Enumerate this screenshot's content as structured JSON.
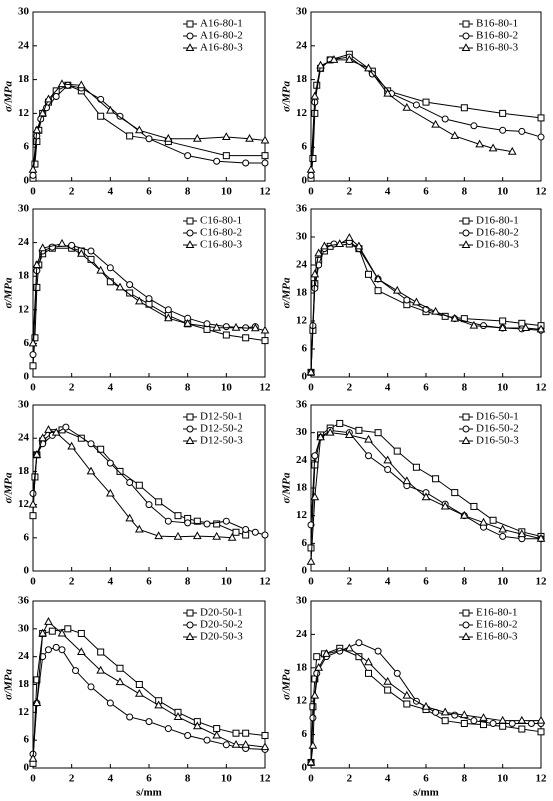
{
  "chart_data": [
    {
      "type": "line",
      "y_label": "σ/MPa",
      "xlim": [
        0,
        12
      ],
      "xticks": [
        0,
        2,
        4,
        6,
        8,
        10,
        12
      ],
      "ylim": [
        0,
        30
      ],
      "yticks": [
        0,
        6,
        12,
        18,
        24,
        30
      ],
      "legend": "upper right",
      "color": "#000000",
      "series": [
        {
          "name": "A16-80-1",
          "marker": "square",
          "x": [
            0,
            0.1,
            0.2,
            0.3,
            0.5,
            0.8,
            1.2,
            1.8,
            2.5,
            3.5,
            5,
            7,
            10,
            12
          ],
          "values": [
            0.5,
            3,
            7,
            9,
            12,
            14,
            16,
            17,
            16,
            11.5,
            8,
            7,
            4.5,
            4.5
          ]
        },
        {
          "name": "A16-80-2",
          "marker": "circle",
          "x": [
            0,
            0.2,
            0.4,
            0.7,
            1.2,
            1.8,
            2.5,
            3.5,
            4.5,
            6,
            8,
            9.5,
            11,
            12
          ],
          "values": [
            1,
            8,
            11,
            13,
            15,
            17,
            16.5,
            14.5,
            11.5,
            7.5,
            4.5,
            3.5,
            3.2,
            3.2
          ]
        },
        {
          "name": "A16-80-3",
          "marker": "triangle",
          "x": [
            0,
            0.2,
            0.5,
            0.8,
            1.5,
            2.5,
            4,
            5.5,
            7,
            8.5,
            10,
            11.2,
            12
          ],
          "values": [
            2,
            9,
            12,
            14.5,
            17.2,
            17,
            12.5,
            9,
            7.5,
            7.5,
            7.8,
            7.5,
            7.2
          ]
        }
      ]
    },
    {
      "type": "line",
      "y_label": "σ/MPa",
      "xlim": [
        0,
        12
      ],
      "xticks": [
        0,
        2,
        4,
        6,
        8,
        10,
        12
      ],
      "ylim": [
        0,
        30
      ],
      "yticks": [
        0,
        6,
        12,
        18,
        24,
        30
      ],
      "legend": "upper right",
      "color": "#000000",
      "series": [
        {
          "name": "B16-80-1",
          "marker": "square",
          "x": [
            0,
            0.1,
            0.2,
            0.3,
            0.5,
            1,
            2,
            3.2,
            4,
            6,
            8,
            10,
            12
          ],
          "values": [
            0.5,
            4,
            12,
            17,
            20,
            21.5,
            22.5,
            19.5,
            16,
            14,
            13,
            12,
            11.2
          ]
        },
        {
          "name": "B16-80-2",
          "marker": "circle",
          "x": [
            0,
            0.2,
            0.5,
            1,
            2,
            3.2,
            4.2,
            5.5,
            7,
            8.5,
            10,
            11,
            12
          ],
          "values": [
            1,
            14,
            20,
            21.5,
            22,
            19,
            15.5,
            13.5,
            11,
            9.8,
            9,
            8.8,
            7.8
          ]
        },
        {
          "name": "B16-80-3",
          "marker": "triangle",
          "x": [
            0,
            0.2,
            0.5,
            1.2,
            2,
            3,
            4,
            5,
            6.5,
            7.5,
            8.8,
            9.5,
            10.5
          ],
          "values": [
            2,
            15,
            20.5,
            21.5,
            21.5,
            20,
            15.5,
            13,
            10,
            8,
            6.5,
            5.8,
            5.2
          ]
        }
      ]
    },
    {
      "type": "line",
      "y_label": "σ/MPa",
      "xlim": [
        0,
        12
      ],
      "xticks": [
        0,
        2,
        4,
        6,
        8,
        10,
        12
      ],
      "ylim": [
        0,
        30
      ],
      "yticks": [
        0,
        6,
        12,
        18,
        24,
        30
      ],
      "legend": "upper right",
      "color": "#000000",
      "series": [
        {
          "name": "C16-80-1",
          "marker": "square",
          "x": [
            0,
            0.1,
            0.2,
            0.3,
            0.5,
            1,
            2,
            2.5,
            3,
            4,
            5,
            6,
            7,
            8,
            9,
            10,
            11,
            12
          ],
          "values": [
            2,
            7,
            16,
            20,
            22,
            23,
            23,
            22.5,
            21,
            17,
            15,
            13,
            11,
            9.5,
            8.5,
            7.5,
            7,
            6.5
          ]
        },
        {
          "name": "C16-80-2",
          "marker": "circle",
          "x": [
            0,
            0.2,
            0.5,
            1,
            2,
            3,
            4,
            5,
            6,
            7,
            8,
            9,
            10,
            11,
            11.5
          ],
          "values": [
            4,
            19,
            22.5,
            23.2,
            23.5,
            22.5,
            19.5,
            16.5,
            14,
            12,
            10.5,
            9.5,
            9,
            8.8,
            9
          ]
        },
        {
          "name": "C16-80-3",
          "marker": "triangle",
          "x": [
            0,
            0.2,
            0.5,
            1.5,
            2.5,
            3.5,
            4.5,
            5.5,
            7,
            8,
            9.5,
            10.5,
            11.5,
            12
          ],
          "values": [
            6,
            20,
            23,
            23.8,
            22,
            19,
            16,
            13.5,
            10.5,
            9.5,
            8.8,
            8.8,
            8.7,
            8.3
          ]
        }
      ]
    },
    {
      "type": "line",
      "y_label": "σ/MPa",
      "xlim": [
        0,
        12
      ],
      "xticks": [
        0,
        2,
        4,
        6,
        8,
        10,
        12
      ],
      "ylim": [
        0,
        36
      ],
      "yticks": [
        0,
        6,
        12,
        18,
        24,
        30,
        36
      ],
      "legend": "upper right",
      "color": "#000000",
      "series": [
        {
          "name": "D16-80-1",
          "marker": "square",
          "x": [
            0,
            0.1,
            0.2,
            0.4,
            0.7,
            1,
            2,
            2.5,
            3,
            3.5,
            5,
            6,
            7,
            8,
            10,
            11,
            12
          ],
          "values": [
            1,
            10,
            20,
            25,
            27,
            28,
            28.5,
            27.5,
            22,
            18.5,
            15.5,
            14,
            13,
            12.5,
            12,
            11.5,
            11
          ]
        },
        {
          "name": "D16-80-2",
          "marker": "circle",
          "x": [
            0,
            0.1,
            0.2,
            0.4,
            0.7,
            1.2,
            2,
            2.5,
            3.5,
            5,
            6,
            7.5,
            9,
            10,
            11,
            12
          ],
          "values": [
            1,
            11,
            19,
            24,
            27.5,
            28.5,
            29,
            27.5,
            21,
            16.5,
            14.5,
            12.5,
            11,
            10.5,
            10.3,
            10
          ]
        },
        {
          "name": "D16-80-3",
          "marker": "triangle",
          "x": [
            0,
            0.2,
            0.4,
            0.7,
            1.5,
            2,
            2.5,
            3.5,
            4.5,
            5.5,
            6.5,
            7.5,
            8.5,
            10,
            11.2,
            12
          ],
          "values": [
            1,
            22,
            26.5,
            28,
            28.5,
            29.8,
            28,
            21,
            18.5,
            16,
            14,
            12.5,
            11,
            10.5,
            10.5,
            10.2
          ]
        }
      ]
    },
    {
      "type": "line",
      "y_label": "σ/MPa",
      "xlim": [
        0,
        12
      ],
      "xticks": [
        0,
        2,
        4,
        6,
        8,
        10,
        12
      ],
      "ylim": [
        0,
        30
      ],
      "yticks": [
        0,
        6,
        12,
        18,
        24,
        30
      ],
      "legend": "upper right",
      "color": "#000000",
      "series": [
        {
          "name": "D12-50-1",
          "marker": "square",
          "x": [
            0,
            0.1,
            0.2,
            0.5,
            1,
            1.5,
            2.5,
            3.5,
            4.5,
            5.5,
            6.5,
            7.5,
            8,
            8.5,
            9.5,
            10.5,
            11
          ],
          "values": [
            10,
            17,
            21,
            23.5,
            25,
            25.5,
            24,
            22,
            18,
            15.5,
            12.5,
            10,
            9.5,
            9,
            8.5,
            7,
            6.5
          ]
        },
        {
          "name": "D12-50-2",
          "marker": "circle",
          "x": [
            0,
            0.2,
            0.5,
            1,
            1.7,
            3,
            4,
            5,
            6,
            7,
            8,
            9,
            10,
            11,
            11.5,
            12
          ],
          "values": [
            14,
            21,
            23,
            24.5,
            26,
            23,
            19.5,
            16,
            12,
            9,
            8.7,
            8.5,
            9,
            7.5,
            7,
            6.5
          ]
        },
        {
          "name": "D12-50-3",
          "marker": "triangle",
          "x": [
            0,
            0.2,
            0.5,
            0.8,
            1.2,
            2,
            3,
            4,
            5,
            5.5,
            6.5,
            7.5,
            8.5,
            9.5,
            10.3
          ],
          "values": [
            12,
            21,
            24,
            25.5,
            25,
            22.5,
            18,
            14,
            9.5,
            7.5,
            6.3,
            6.2,
            6.3,
            6.2,
            6
          ]
        }
      ]
    },
    {
      "type": "line",
      "y_label": "σ/MPa",
      "xlim": [
        0,
        12
      ],
      "xticks": [
        0,
        2,
        4,
        6,
        8,
        10,
        12
      ],
      "ylim": [
        0,
        36
      ],
      "yticks": [
        0,
        6,
        12,
        18,
        24,
        30,
        36
      ],
      "legend": "upper right",
      "color": "#000000",
      "series": [
        {
          "name": "D16-50-1",
          "marker": "square",
          "x": [
            0,
            0.2,
            0.5,
            1,
            1.5,
            2.5,
            3.5,
            4.5,
            5.5,
            6.5,
            7.5,
            8.5,
            9.5,
            11,
            12
          ],
          "values": [
            5,
            23,
            29.5,
            31,
            32,
            30.5,
            30,
            26,
            22.5,
            20,
            17,
            14,
            11,
            8.5,
            7.5
          ]
        },
        {
          "name": "D16-50-2",
          "marker": "circle",
          "x": [
            0,
            0.2,
            0.5,
            1,
            2,
            3,
            4,
            5,
            6,
            7,
            8,
            9,
            10,
            11,
            12
          ],
          "values": [
            10,
            25,
            29,
            30.5,
            30,
            25,
            22,
            18.5,
            17,
            14.5,
            12,
            9.5,
            7.5,
            7,
            7
          ]
        },
        {
          "name": "D16-50-3",
          "marker": "triangle",
          "x": [
            0,
            0.2,
            0.5,
            1,
            2,
            3,
            4,
            5,
            6,
            7,
            8,
            9,
            10,
            11,
            12
          ],
          "values": [
            2,
            16,
            29,
            30,
            29.5,
            28.5,
            24,
            19.5,
            16,
            14,
            12,
            10.5,
            9,
            8,
            7
          ]
        }
      ]
    },
    {
      "type": "line",
      "x_label": "s/mm",
      "y_label": "σ/MPa",
      "xlim": [
        0,
        12
      ],
      "xticks": [
        0,
        2,
        4,
        6,
        8,
        10,
        12
      ],
      "ylim": [
        0,
        36
      ],
      "yticks": [
        0,
        6,
        12,
        18,
        24,
        30,
        36
      ],
      "legend": "upper right",
      "color": "#000000",
      "series": [
        {
          "name": "D20-50-1",
          "marker": "square",
          "x": [
            0,
            0.2,
            0.5,
            1,
            1.8,
            2.5,
            3.5,
            4.5,
            5.5,
            6.5,
            7.5,
            8.5,
            9.5,
            10.5,
            11,
            12
          ],
          "values": [
            1,
            19,
            29,
            29.5,
            30,
            29,
            25,
            21.5,
            18,
            14.5,
            12,
            10,
            8.5,
            7.5,
            7.5,
            7
          ]
        },
        {
          "name": "D20-50-2",
          "marker": "circle",
          "x": [
            0,
            0.2,
            0.5,
            0.8,
            1.2,
            1.5,
            2.2,
            3,
            4,
            5,
            6,
            7,
            8,
            9,
            10,
            11,
            12
          ],
          "values": [
            3,
            14,
            24,
            25.5,
            26,
            25.5,
            21,
            17.5,
            14,
            11,
            10,
            8.5,
            7,
            6,
            5,
            4.2,
            4
          ]
        },
        {
          "name": "D20-50-3",
          "marker": "triangle",
          "x": [
            0,
            0.2,
            0.5,
            0.8,
            1.5,
            2.5,
            3.5,
            4.5,
            5.5,
            6.5,
            7.5,
            8.5,
            9.5,
            10.5,
            11,
            12
          ],
          "values": [
            2,
            14,
            29,
            31.5,
            29,
            25,
            21,
            18.5,
            16,
            13.5,
            11,
            9,
            7,
            5,
            5,
            4.5
          ]
        }
      ]
    },
    {
      "type": "line",
      "x_label": "s/mm",
      "y_label": "σ/MPa",
      "xlim": [
        0,
        12
      ],
      "xticks": [
        0,
        2,
        4,
        6,
        8,
        10,
        12
      ],
      "ylim": [
        0,
        30
      ],
      "yticks": [
        0,
        6,
        12,
        18,
        24,
        30
      ],
      "legend": "upper right",
      "color": "#000000",
      "series": [
        {
          "name": "E16-80-1",
          "marker": "square",
          "x": [
            0,
            0.1,
            0.2,
            0.3,
            0.7,
            1.5,
            2.5,
            3,
            4,
            5,
            6,
            7,
            8,
            9,
            10,
            11,
            12
          ],
          "values": [
            1,
            11,
            16,
            20,
            20.5,
            21.5,
            20,
            17,
            14,
            11.5,
            10.5,
            8.5,
            8,
            7.8,
            7.5,
            7,
            6.5
          ]
        },
        {
          "name": "E16-80-2",
          "marker": "circle",
          "x": [
            0,
            0.1,
            0.3,
            0.8,
            1.5,
            2.5,
            3.5,
            4.5,
            5.5,
            6.5,
            7.5,
            8.5,
            9.5,
            10.5,
            11.5,
            12
          ],
          "values": [
            1,
            9,
            17,
            20,
            21,
            22.5,
            21,
            17,
            12,
            10,
            9.5,
            8.5,
            8,
            8,
            8,
            8
          ]
        },
        {
          "name": "E16-80-3",
          "marker": "triangle",
          "x": [
            0,
            0.1,
            0.2,
            0.4,
            0.8,
            2,
            3,
            4,
            5,
            6,
            7,
            8,
            9,
            10,
            11,
            12
          ],
          "values": [
            1,
            4,
            13,
            18,
            20.5,
            21.5,
            19,
            15.5,
            13,
            11,
            10,
            9.5,
            9,
            8.5,
            8.5,
            8.5
          ]
        }
      ]
    }
  ]
}
